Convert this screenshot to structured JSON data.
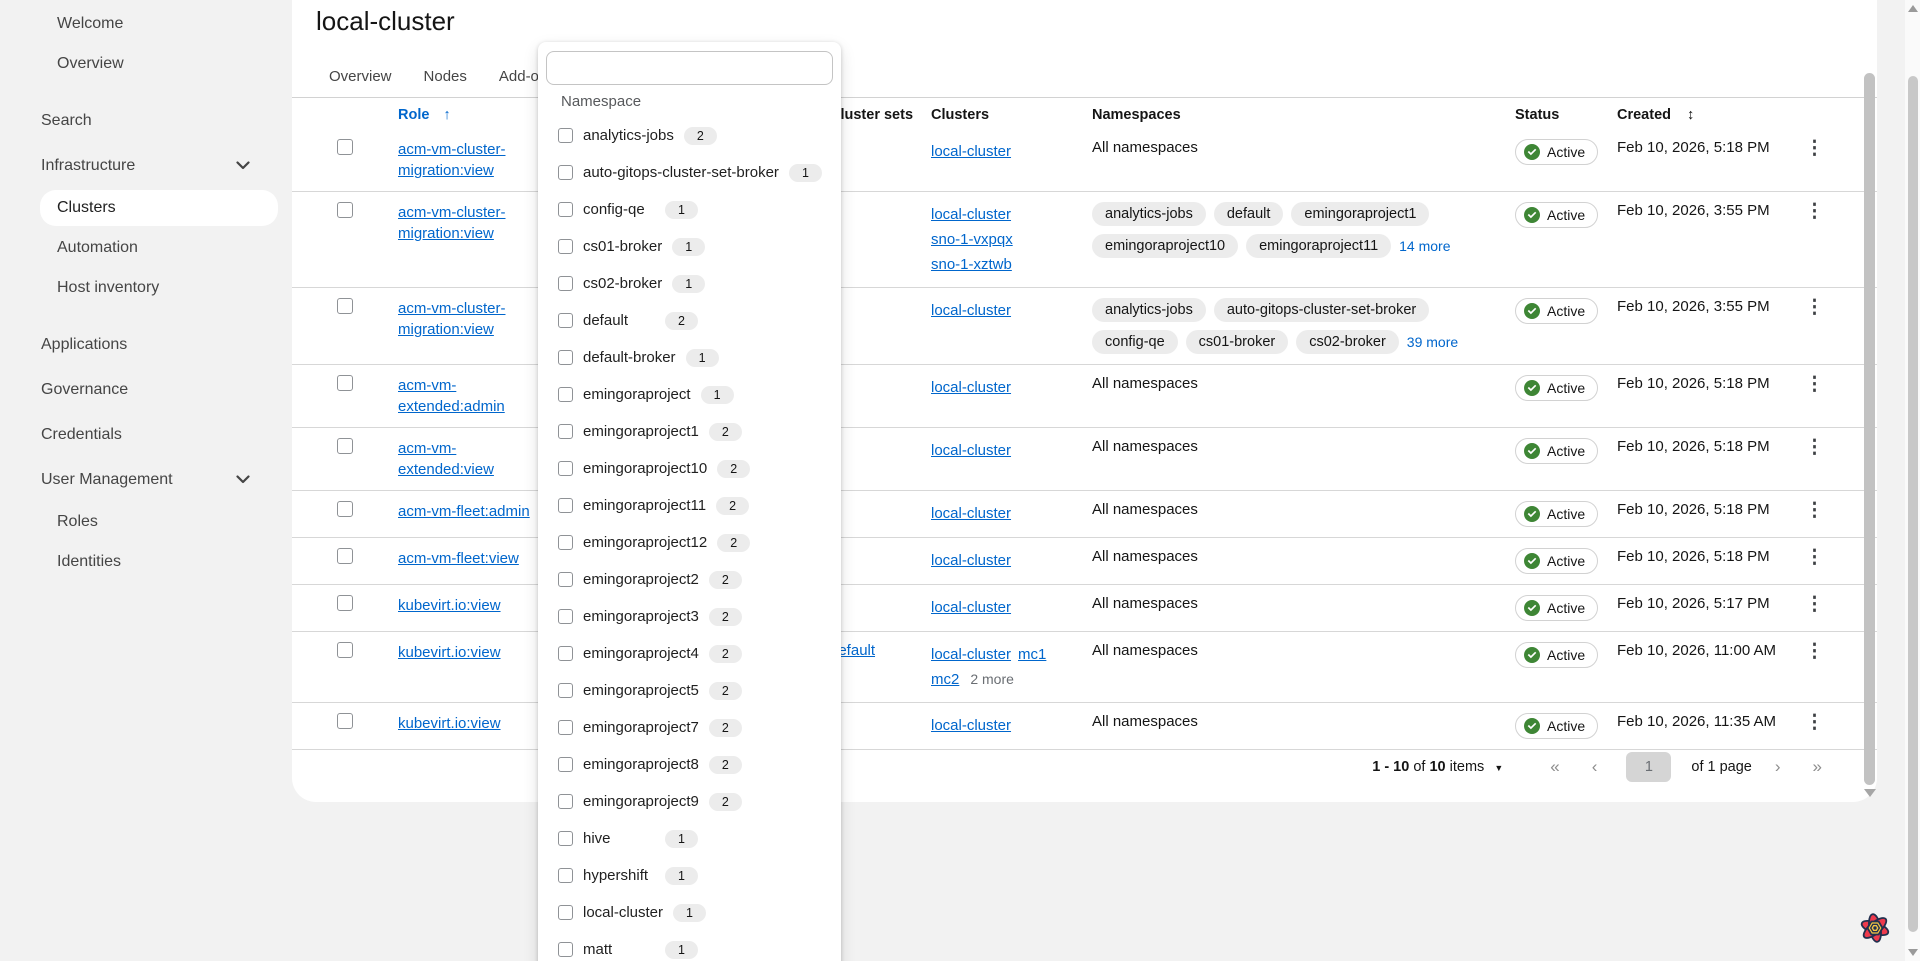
{
  "page": {
    "title": "local-cluster"
  },
  "colors": {
    "link_blue": "#0066cc",
    "status_green": "#3e8635",
    "accent_red": "#ee3a4d"
  },
  "sidebar": {
    "items": [
      {
        "label": "Welcome",
        "level": 2
      },
      {
        "label": "Overview",
        "level": 2
      },
      {
        "label": "Search",
        "level": 1,
        "gap": true
      },
      {
        "label": "Infrastructure",
        "level": 1,
        "expanded": true
      },
      {
        "label": "Clusters",
        "level": 2,
        "selected": true
      },
      {
        "label": "Automation",
        "level": 2
      },
      {
        "label": "Host inventory",
        "level": 2
      },
      {
        "label": "Applications",
        "level": 1,
        "gap": true
      },
      {
        "label": "Governance",
        "level": 1
      },
      {
        "label": "Credentials",
        "level": 1
      },
      {
        "label": "User Management",
        "level": 1,
        "expanded": true
      },
      {
        "label": "Roles",
        "level": 2
      },
      {
        "label": "Identities",
        "level": 2
      }
    ]
  },
  "tabs": [
    {
      "label": "Overview"
    },
    {
      "label": "Nodes"
    },
    {
      "label": "Add-ons"
    }
  ],
  "namespace_dropdown": {
    "search_value": "",
    "group_label": "Namespace",
    "options": [
      {
        "label": "analytics-jobs",
        "count": "2"
      },
      {
        "label": "auto-gitops-cluster-set-broker",
        "count": "1"
      },
      {
        "label": "config-qe",
        "count": "1"
      },
      {
        "label": "cs01-broker",
        "count": "1"
      },
      {
        "label": "cs02-broker",
        "count": "1"
      },
      {
        "label": "default",
        "count": "2"
      },
      {
        "label": "default-broker",
        "count": "1"
      },
      {
        "label": "emingoraproject",
        "count": "1"
      },
      {
        "label": "emingoraproject1",
        "count": "2"
      },
      {
        "label": "emingoraproject10",
        "count": "2"
      },
      {
        "label": "emingoraproject11",
        "count": "2"
      },
      {
        "label": "emingoraproject12",
        "count": "2"
      },
      {
        "label": "emingoraproject2",
        "count": "2"
      },
      {
        "label": "emingoraproject3",
        "count": "2"
      },
      {
        "label": "emingoraproject4",
        "count": "2"
      },
      {
        "label": "emingoraproject5",
        "count": "2"
      },
      {
        "label": "emingoraproject7",
        "count": "2"
      },
      {
        "label": "emingoraproject8",
        "count": "2"
      },
      {
        "label": "emingoraproject9",
        "count": "2"
      },
      {
        "label": "hive",
        "count": "1"
      },
      {
        "label": "hypershift",
        "count": "1"
      },
      {
        "label": "local-cluster",
        "count": "1"
      },
      {
        "label": "matt",
        "count": "1"
      }
    ]
  },
  "table": {
    "headers": {
      "role": "Role",
      "cluster_sets": "Cluster sets",
      "clusters": "Clusters",
      "namespaces": "Namespaces",
      "status": "Status",
      "created": "Created"
    },
    "rows": [
      {
        "role": "acm-vm-cluster-migration:view",
        "cluster_sets": [],
        "clusters": [
          "local-cluster"
        ],
        "clusters_more": "",
        "stack": false,
        "namespaces_all": "All namespaces",
        "namespace_pills": [],
        "namespaces_more": "",
        "status": "Active",
        "created": "Feb 10, 2026, 5:18 PM"
      },
      {
        "role": "acm-vm-cluster-migration:view",
        "cluster_sets": [],
        "clusters": [
          "local-cluster",
          "sno-1-vxpqx",
          "sno-1-xztwb"
        ],
        "clusters_more": "",
        "stack": true,
        "namespaces_all": "",
        "namespace_pills": [
          "analytics-jobs",
          "default",
          "emingoraproject1",
          "emingoraproject10",
          "emingoraproject11"
        ],
        "namespaces_more": "14 more",
        "status": "Active",
        "created": "Feb 10, 2026, 3:55 PM"
      },
      {
        "role": "acm-vm-cluster-migration:view",
        "cluster_sets": [],
        "clusters": [
          "local-cluster"
        ],
        "clusters_more": "",
        "stack": false,
        "namespaces_all": "",
        "namespace_pills": [
          "analytics-jobs",
          "auto-gitops-cluster-set-broker",
          "config-qe",
          "cs01-broker",
          "cs02-broker"
        ],
        "namespaces_more": "39 more",
        "status": "Active",
        "created": "Feb 10, 2026, 3:55 PM"
      },
      {
        "role": "acm-vm-extended:admin",
        "cluster_sets": [],
        "clusters": [
          "local-cluster"
        ],
        "clusters_more": "",
        "stack": false,
        "namespaces_all": "All namespaces",
        "namespace_pills": [],
        "namespaces_more": "",
        "status": "Active",
        "created": "Feb 10, 2026, 5:18 PM"
      },
      {
        "role": "acm-vm-extended:view",
        "cluster_sets": [],
        "clusters": [
          "local-cluster"
        ],
        "clusters_more": "",
        "stack": false,
        "namespaces_all": "All namespaces",
        "namespace_pills": [],
        "namespaces_more": "",
        "status": "Active",
        "created": "Feb 10, 2026, 5:18 PM"
      },
      {
        "role": "acm-vm-fleet:admin",
        "cluster_sets": [],
        "clusters": [
          "local-cluster"
        ],
        "clusters_more": "",
        "stack": false,
        "namespaces_all": "All namespaces",
        "namespace_pills": [],
        "namespaces_more": "",
        "status": "Active",
        "created": "Feb 10, 2026, 5:18 PM"
      },
      {
        "role": "acm-vm-fleet:view",
        "cluster_sets": [],
        "clusters": [
          "local-cluster"
        ],
        "clusters_more": "",
        "stack": false,
        "namespaces_all": "All namespaces",
        "namespace_pills": [],
        "namespaces_more": "",
        "status": "Active",
        "created": "Feb 10, 2026, 5:18 PM"
      },
      {
        "role": "kubevirt.io:view",
        "cluster_sets": [],
        "clusters": [
          "local-cluster"
        ],
        "clusters_more": "",
        "stack": false,
        "namespaces_all": "All namespaces",
        "namespace_pills": [],
        "namespaces_more": "",
        "status": "Active",
        "created": "Feb 10, 2026, 5:17 PM"
      },
      {
        "role": "kubevirt.io:view",
        "cluster_sets": [
          "default"
        ],
        "clusters": [
          "local-cluster",
          "mc1",
          "mc2"
        ],
        "clusters_more": "2 more",
        "stack": false,
        "namespaces_all": "All namespaces",
        "namespace_pills": [],
        "namespaces_more": "",
        "status": "Active",
        "created": "Feb 10, 2026, 11:00 AM"
      },
      {
        "role": "kubevirt.io:view",
        "cluster_sets": [],
        "clusters": [
          "local-cluster"
        ],
        "clusters_more": "",
        "stack": false,
        "namespaces_all": "All namespaces",
        "namespace_pills": [],
        "namespaces_more": "",
        "status": "Active",
        "created": "Feb 10, 2026, 11:35 AM"
      }
    ]
  },
  "pagination": {
    "range": "1 - 10",
    "of_label": "of",
    "total": "10",
    "items_label": "items",
    "page_value": "1",
    "page_of_label": "of 1 page"
  }
}
